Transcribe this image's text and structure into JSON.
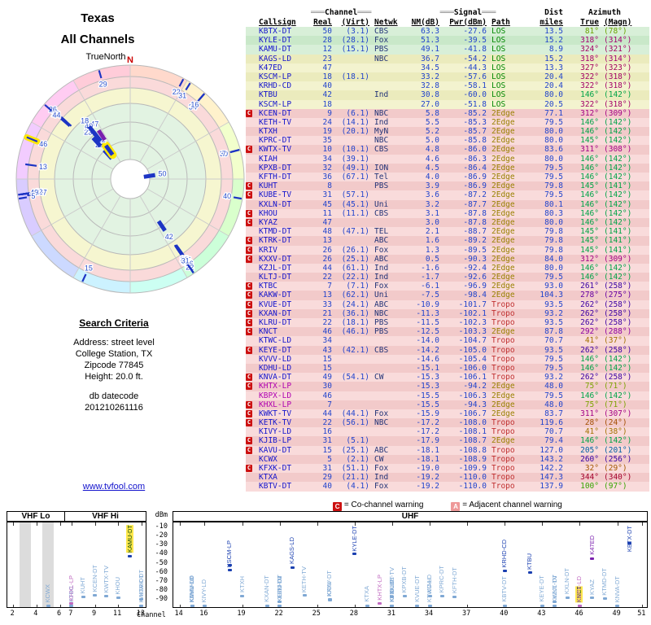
{
  "title": {
    "line1": "Texas",
    "line2": "All Channels"
  },
  "radar": {
    "compass": "N",
    "orientation": "TrueNorth"
  },
  "search": {
    "heading": "Search Criteria",
    "lines": [
      "Address: street level",
      "College Station, TX",
      "Zipcode 77845",
      "Height: 20.0 ft."
    ]
  },
  "datecode": {
    "label": "db datecode",
    "value": "201210261116"
  },
  "site_link": "www.tvfool.com",
  "header": {
    "deco": "═══",
    "channel": "Channel",
    "signal": "Signal",
    "callsign": "Callsign",
    "real": "Real",
    "virt": "(Virt)",
    "netwk": "Netwk",
    "nm": "NM(dB)",
    "pwr": "Pwr(dBm)",
    "path": "Path",
    "dist": "Dist",
    "miles": "miles",
    "azimuth": "Azimuth",
    "true": "True",
    "magn": "(Magn)"
  },
  "legend": {
    "c_symbol": "C",
    "c_text": "= Co-channel warning",
    "c_color": "#cc1111",
    "a_symbol": "A",
    "a_text": "= Adjacent channel warning",
    "a_color": "#ee9999"
  },
  "chart": {
    "dbm_label": "dBm",
    "channel_label": "Channel",
    "yticks": [
      "-10",
      "-20",
      "-30",
      "-40",
      "-50",
      "-60",
      "-70",
      "-80",
      "-90"
    ],
    "bands": [
      {
        "label": "VHF Lo"
      },
      {
        "label": "VHF Hi"
      },
      {
        "label": "UHF"
      }
    ],
    "vhf_ticks": [
      2,
      4,
      6,
      7,
      9,
      11,
      13
    ],
    "uhf_ticks": [
      14,
      16,
      19,
      22,
      25,
      28,
      31,
      34,
      37,
      40,
      43,
      46,
      49,
      51
    ],
    "gray_stripe_channels": [
      3,
      5
    ]
  },
  "stations": [
    {
      "cs": "KBTX-DT",
      "warn": "",
      "real": "50",
      "virt": "(3.1)",
      "net": "CBS",
      "nm": "63.3",
      "pwr": "-27.6",
      "path": "LOS",
      "dist": "13.5",
      "azt": "81°",
      "azm": "(78°)",
      "az": 81,
      "ch": 50,
      "nmv": 63.3,
      "pw": -27.6
    },
    {
      "cs": "KYLE-DT",
      "warn": "",
      "real": "28",
      "virt": "(28.1)",
      "net": "Fox",
      "nm": "51.3",
      "pwr": "-39.5",
      "path": "LOS",
      "dist": "15.2",
      "azt": "318°",
      "azm": "(314°)",
      "az": 318,
      "ch": 28,
      "nmv": 51.3,
      "pw": -39.5
    },
    {
      "cs": "KAMU-DT",
      "warn": "",
      "real": "12",
      "virt": "(15.1)",
      "net": "PBS",
      "nm": "49.1",
      "pwr": "-41.8",
      "path": "LOS",
      "dist": "8.9",
      "azt": "324°",
      "azm": "(321°)",
      "az": 324,
      "ch": 12,
      "nmv": 49.1,
      "pw": -41.8,
      "hl": true
    },
    {
      "cs": "KAGS-LD",
      "warn": "",
      "real": "23",
      "virt": "",
      "net": "NBC",
      "nm": "36.7",
      "pwr": "-54.2",
      "path": "LOS",
      "dist": "15.2",
      "azt": "318°",
      "azm": "(314°)",
      "az": 318,
      "ch": 23,
      "nmv": 36.7,
      "pw": -54.2
    },
    {
      "cs": "K47ED",
      "warn": "",
      "real": "47",
      "virt": "",
      "net": "",
      "nm": "34.5",
      "pwr": "-44.3",
      "path": "LOS",
      "dist": "13.3",
      "azt": "327°",
      "azm": "(323°)",
      "az": 327,
      "ch": 47,
      "nmv": 34.5,
      "pw": -44.3,
      "cc": "#7a1fae"
    },
    {
      "cs": "KSCM-LP",
      "warn": "",
      "real": "18",
      "virt": "(18.1)",
      "net": "",
      "nm": "33.2",
      "pwr": "-57.6",
      "path": "LOS",
      "dist": "20.4",
      "azt": "322°",
      "azm": "(318°)",
      "az": 322,
      "ch": 18,
      "nmv": 33.2,
      "pw": -57.6
    },
    {
      "cs": "KRHD-CD",
      "warn": "",
      "real": "40",
      "virt": "",
      "net": "",
      "nm": "32.8",
      "pwr": "-58.1",
      "path": "LOS",
      "dist": "20.4",
      "azt": "322°",
      "azm": "(318°)",
      "az": 322,
      "ch": 40,
      "nmv": 32.8,
      "pw": -58.1
    },
    {
      "cs": "KTBU",
      "warn": "",
      "real": "42",
      "virt": "",
      "net": "Ind",
      "nm": "30.8",
      "pwr": "-60.0",
      "path": "LOS",
      "dist": "80.0",
      "azt": "146°",
      "azm": "(142°)",
      "az": 146,
      "ch": 42,
      "nmv": 30.8,
      "pw": -60.0
    },
    {
      "cs": "KSCM-LP",
      "warn": "",
      "real": "18",
      "virt": "",
      "net": "",
      "nm": "27.0",
      "pwr": "-51.8",
      "path": "LOS",
      "dist": "20.5",
      "azt": "322°",
      "azm": "(318°)",
      "az": 322,
      "ch": 18,
      "nmv": 27.0,
      "pw": -51.8
    },
    {
      "cs": "KCEN-DT",
      "warn": "C",
      "real": "9",
      "virt": "(6.1)",
      "net": "NBC",
      "nm": "5.8",
      "pwr": "-85.2",
      "path": "2Edge",
      "dist": "77.1",
      "azt": "312°",
      "azm": "(309°)",
      "az": 312,
      "ch": 9,
      "nmv": 5.8,
      "pw": -85.2
    },
    {
      "cs": "KETH-TV",
      "warn": "",
      "real": "24",
      "virt": "(14.1)",
      "net": "Ind",
      "nm": "5.5",
      "pwr": "-85.3",
      "path": "2Edge",
      "dist": "79.5",
      "azt": "146°",
      "azm": "(142°)",
      "az": 146,
      "ch": 24,
      "nmv": 5.5,
      "pw": -85.3
    },
    {
      "cs": "KTXH",
      "warn": "",
      "real": "19",
      "virt": "(20.1)",
      "net": "MyN",
      "nm": "5.2",
      "pwr": "-85.7",
      "path": "2Edge",
      "dist": "80.0",
      "azt": "146°",
      "azm": "(142°)",
      "az": 146,
      "ch": 19,
      "nmv": 5.2,
      "pw": -85.7
    },
    {
      "cs": "KPRC-DT",
      "warn": "",
      "real": "35",
      "virt": "",
      "net": "NBC",
      "nm": "5.0",
      "pwr": "-85.8",
      "path": "2Edge",
      "dist": "80.0",
      "azt": "145°",
      "azm": "(142°)",
      "az": 145,
      "ch": 35,
      "nmv": 5.0,
      "pw": -85.8
    },
    {
      "cs": "KWTX-TV",
      "warn": "C",
      "real": "10",
      "virt": "(10.1)",
      "net": "CBS",
      "nm": "4.8",
      "pwr": "-86.0",
      "path": "2Edge",
      "dist": "83.6",
      "azt": "311°",
      "azm": "(308°)",
      "az": 311,
      "ch": 10,
      "nmv": 4.8,
      "pw": -86.0
    },
    {
      "cs": "KIAH",
      "warn": "",
      "real": "34",
      "virt": "(39.1)",
      "net": "",
      "nm": "4.6",
      "pwr": "-86.3",
      "path": "2Edge",
      "dist": "80.0",
      "azt": "146°",
      "azm": "(142°)",
      "az": 146,
      "ch": 34,
      "nmv": 4.6,
      "pw": -86.3
    },
    {
      "cs": "KPXB-DT",
      "warn": "",
      "real": "32",
      "virt": "(49.1)",
      "net": "ION",
      "nm": "4.5",
      "pwr": "-86.4",
      "path": "2Edge",
      "dist": "79.5",
      "azt": "146°",
      "azm": "(142°)",
      "az": 146,
      "ch": 32,
      "nmv": 4.5,
      "pw": -86.4
    },
    {
      "cs": "KFTH-DT",
      "warn": "",
      "real": "36",
      "virt": "(67.1)",
      "net": "Tel",
      "nm": "4.0",
      "pwr": "-86.9",
      "path": "2Edge",
      "dist": "79.5",
      "azt": "146°",
      "azm": "(142°)",
      "az": 146,
      "ch": 36,
      "nmv": 4.0,
      "pw": -86.9
    },
    {
      "cs": "KUHT",
      "warn": "C",
      "real": "8",
      "virt": "",
      "net": "PBS",
      "nm": "3.9",
      "pwr": "-86.9",
      "path": "2Edge",
      "dist": "79.8",
      "azt": "145°",
      "azm": "(141°)",
      "az": 145,
      "ch": 8,
      "nmv": 3.9,
      "pw": -86.9
    },
    {
      "cs": "KUBE-TV",
      "warn": "C",
      "real": "31",
      "virt": "(57.1)",
      "net": "",
      "nm": "3.6",
      "pwr": "-87.2",
      "path": "2Edge",
      "dist": "79.5",
      "azt": "146°",
      "azm": "(142°)",
      "az": 146,
      "ch": 31,
      "nmv": 3.6,
      "pw": -87.2
    },
    {
      "cs": "KXLN-DT",
      "warn": "",
      "real": "45",
      "virt": "(45.1)",
      "net": "Uni",
      "nm": "3.2",
      "pwr": "-87.7",
      "path": "2Edge",
      "dist": "80.1",
      "azt": "146°",
      "azm": "(142°)",
      "az": 146,
      "ch": 45,
      "nmv": 3.2,
      "pw": -87.7
    },
    {
      "cs": "KHOU",
      "warn": "C",
      "real": "11",
      "virt": "(11.1)",
      "net": "CBS",
      "nm": "3.1",
      "pwr": "-87.8",
      "path": "2Edge",
      "dist": "80.3",
      "azt": "146°",
      "azm": "(142°)",
      "az": 146,
      "ch": 11,
      "nmv": 3.1,
      "pw": -87.8
    },
    {
      "cs": "KYAZ",
      "warn": "C",
      "real": "47",
      "virt": "",
      "net": "",
      "nm": "3.0",
      "pwr": "-87.8",
      "path": "2Edge",
      "dist": "80.0",
      "azt": "146°",
      "azm": "(142°)",
      "az": 146,
      "ch": 47,
      "nmv": 3.0,
      "pw": -87.8
    },
    {
      "cs": "KTMD-DT",
      "warn": "",
      "real": "48",
      "virt": "(47.1)",
      "net": "TEL",
      "nm": "2.1",
      "pwr": "-88.7",
      "path": "2Edge",
      "dist": "79.8",
      "azt": "145°",
      "azm": "(141°)",
      "az": 145,
      "ch": 48,
      "nmv": 2.1,
      "pw": -88.7
    },
    {
      "cs": "KTRK-DT",
      "warn": "C",
      "real": "13",
      "virt": "",
      "net": "ABC",
      "nm": "1.6",
      "pwr": "-89.2",
      "path": "2Edge",
      "dist": "79.8",
      "azt": "145°",
      "azm": "(141°)",
      "az": 145,
      "ch": 13,
      "nmv": 1.6,
      "pw": -89.2
    },
    {
      "cs": "KRIV",
      "warn": "C",
      "real": "26",
      "virt": "(26.1)",
      "net": "Fox",
      "nm": "1.3",
      "pwr": "-89.5",
      "path": "2Edge",
      "dist": "79.8",
      "azt": "145°",
      "azm": "(141°)",
      "az": 145,
      "ch": 26,
      "nmv": 1.3,
      "pw": -89.5
    },
    {
      "cs": "KXXV-DT",
      "warn": "C",
      "real": "26",
      "virt": "(25.1)",
      "net": "ABC",
      "nm": "0.5",
      "pwr": "-90.3",
      "path": "2Edge",
      "dist": "84.0",
      "azt": "312°",
      "azm": "(309°)",
      "az": 312,
      "ch": 26,
      "nmv": 0.5,
      "pw": -90.3
    },
    {
      "cs": "KZJL-DT",
      "warn": "",
      "real": "44",
      "virt": "(61.1)",
      "net": "Ind",
      "nm": "-1.6",
      "pwr": "-92.4",
      "path": "2Edge",
      "dist": "80.0",
      "azt": "146°",
      "azm": "(142°)",
      "az": 146,
      "ch": 44,
      "nmv": -1.6,
      "pw": -92.4
    },
    {
      "cs": "KLTJ-DT",
      "warn": "",
      "real": "22",
      "virt": "(22.1)",
      "net": "Ind",
      "nm": "-1.7",
      "pwr": "-92.6",
      "path": "2Edge",
      "dist": "79.5",
      "azt": "146°",
      "azm": "(142°)",
      "az": 146,
      "ch": 22,
      "nmv": -1.7,
      "pw": -92.6
    },
    {
      "cs": "KTBC",
      "warn": "C",
      "real": "7",
      "virt": "(7.1)",
      "net": "Fox",
      "nm": "-6.1",
      "pwr": "-96.9",
      "path": "2Edge",
      "dist": "93.0",
      "azt": "261°",
      "azm": "(258°)",
      "az": 261,
      "ch": 7,
      "nmv": -6.1,
      "pw": -96.9
    },
    {
      "cs": "KAKW-DT",
      "warn": "C",
      "real": "13",
      "virt": "(62.1)",
      "net": "Uni",
      "nm": "-7.5",
      "pwr": "-98.4",
      "path": "2Edge",
      "dist": "104.3",
      "azt": "278°",
      "azm": "(275°)",
      "az": 278,
      "ch": 13,
      "nmv": -7.5,
      "pw": -98.4
    },
    {
      "cs": "KVUE-DT",
      "warn": "C",
      "real": "33",
      "virt": "(24.1)",
      "net": "ABC",
      "nm": "-10.9",
      "pwr": "-101.7",
      "path": "Tropo",
      "dist": "93.5",
      "azt": "262°",
      "azm": "(258°)",
      "az": 262,
      "ch": 33,
      "nmv": -10.9,
      "pw": -101.7
    },
    {
      "cs": "KXAN-DT",
      "warn": "C",
      "real": "21",
      "virt": "(36.1)",
      "net": "NBC",
      "nm": "-11.3",
      "pwr": "-102.1",
      "path": "Tropo",
      "dist": "93.2",
      "azt": "262°",
      "azm": "(258°)",
      "az": 262,
      "ch": 21,
      "nmv": -11.3,
      "pw": -102.1
    },
    {
      "cs": "KLRU-DT",
      "warn": "C",
      "real": "22",
      "virt": "(18.1)",
      "net": "PBS",
      "nm": "-11.5",
      "pwr": "-102.3",
      "path": "Tropo",
      "dist": "93.5",
      "azt": "262°",
      "azm": "(258°)",
      "az": 262,
      "ch": 22,
      "nmv": -11.5,
      "pw": -102.3
    },
    {
      "cs": "KNCT",
      "warn": "C",
      "real": "46",
      "virt": "(46.1)",
      "net": "PBS",
      "nm": "-12.5",
      "pwr": "-103.3",
      "path": "2Edge",
      "dist": "87.8",
      "azt": "292°",
      "azm": "(288°)",
      "az": 292,
      "ch": 46,
      "nmv": -12.5,
      "pw": -103.3,
      "hl": true
    },
    {
      "cs": "KTWC-LD",
      "warn": "",
      "real": "34",
      "virt": "",
      "net": "",
      "nm": "-14.0",
      "pwr": "-104.7",
      "path": "Tropo",
      "dist": "70.7",
      "azt": "41°",
      "azm": "(37°)",
      "az": 41,
      "ch": 34,
      "nmv": -14.0,
      "pw": -104.7
    },
    {
      "cs": "KEYE-DT",
      "warn": "C",
      "real": "43",
      "virt": "(42.1)",
      "net": "CBS",
      "nm": "-14.2",
      "pwr": "-105.0",
      "path": "Tropo",
      "dist": "93.5",
      "azt": "262°",
      "azm": "(258°)",
      "az": 262,
      "ch": 43,
      "nmv": -14.2,
      "pw": -105.0
    },
    {
      "cs": "KVVV-LD",
      "warn": "",
      "real": "15",
      "virt": "",
      "net": "",
      "nm": "-14.6",
      "pwr": "-105.4",
      "path": "Tropo",
      "dist": "79.5",
      "azt": "146°",
      "azm": "(142°)",
      "az": 146,
      "ch": 15,
      "nmv": -14.6,
      "pw": -105.4
    },
    {
      "cs": "KDHU-LD",
      "warn": "",
      "real": "15",
      "virt": "",
      "net": "",
      "nm": "-15.1",
      "pwr": "-106.0",
      "path": "Tropo",
      "dist": "79.5",
      "azt": "146°",
      "azm": "(142°)",
      "az": 146,
      "ch": 15,
      "nmv": -15.1,
      "pw": -106.0
    },
    {
      "cs": "KNVA-DT",
      "warn": "C",
      "real": "49",
      "virt": "(54.1)",
      "net": "CW",
      "nm": "-15.3",
      "pwr": "-106.1",
      "path": "Tropo",
      "dist": "93.2",
      "azt": "262°",
      "azm": "(258°)",
      "az": 262,
      "ch": 49,
      "nmv": -15.3,
      "pw": -106.1
    },
    {
      "cs": "KHTX-LP",
      "warn": "C",
      "real": "30",
      "virt": "",
      "net": "",
      "nm": "-15.3",
      "pwr": "-94.2",
      "path": "2Edge",
      "dist": "48.0",
      "azt": "75°",
      "azm": "(71°)",
      "az": 75,
      "ch": 30,
      "nmv": -15.3,
      "pw": -94.2,
      "mag": true
    },
    {
      "cs": "KBPX-LD",
      "warn": "",
      "real": "46",
      "virt": "",
      "net": "",
      "nm": "-15.5",
      "pwr": "-106.3",
      "path": "2Edge",
      "dist": "79.5",
      "azt": "146°",
      "azm": "(142°)",
      "az": 146,
      "ch": 46,
      "nmv": -15.5,
      "pw": -106.3,
      "mag": true
    },
    {
      "cs": "KHXL-LP",
      "warn": "C",
      "real": "7",
      "virt": "",
      "net": "",
      "nm": "-15.5",
      "pwr": "-94.3",
      "path": "2Edge",
      "dist": "48.0",
      "azt": "75°",
      "azm": "(71°)",
      "az": 75,
      "ch": 7,
      "nmv": -15.5,
      "pw": -94.3,
      "mag": true
    },
    {
      "cs": "KWKT-TV",
      "warn": "C",
      "real": "44",
      "virt": "(44.1)",
      "net": "Fox",
      "nm": "-15.9",
      "pwr": "-106.7",
      "path": "2Edge",
      "dist": "83.7",
      "azt": "311°",
      "azm": "(307°)",
      "az": 311,
      "ch": 44,
      "nmv": -15.9,
      "pw": -106.7
    },
    {
      "cs": "KETK-TV",
      "warn": "C",
      "real": "22",
      "virt": "(56.1)",
      "net": "NBC",
      "nm": "-17.2",
      "pwr": "-108.0",
      "path": "Tropo",
      "dist": "119.6",
      "azt": "28°",
      "azm": "(24°)",
      "az": 28,
      "ch": 22,
      "nmv": -17.2,
      "pw": -108.0
    },
    {
      "cs": "KIVY-LD",
      "warn": "",
      "real": "16",
      "virt": "",
      "net": "",
      "nm": "-17.2",
      "pwr": "-108.1",
      "path": "Tropo",
      "dist": "70.7",
      "azt": "41°",
      "azm": "(38°)",
      "az": 41,
      "ch": 16,
      "nmv": -17.2,
      "pw": -108.1
    },
    {
      "cs": "KJIB-LP",
      "warn": "C",
      "real": "31",
      "virt": "(5.1)",
      "net": "",
      "nm": "-17.9",
      "pwr": "-108.7",
      "path": "2Edge",
      "dist": "79.4",
      "azt": "146°",
      "azm": "(142°)",
      "az": 146,
      "ch": 31,
      "nmv": -17.9,
      "pw": -108.7
    },
    {
      "cs": "KAVU-DT",
      "warn": "C",
      "real": "15",
      "virt": "(25.1)",
      "net": "ABC",
      "nm": "-18.1",
      "pwr": "-108.8",
      "path": "Tropo",
      "dist": "127.0",
      "azt": "205°",
      "azm": "(201°)",
      "az": 205,
      "ch": 15,
      "nmv": -18.1,
      "pw": -108.8
    },
    {
      "cs": "KCWX",
      "warn": "",
      "real": "5",
      "virt": "(2.1)",
      "net": "CW",
      "nm": "-18.1",
      "pwr": "-108.9",
      "path": "Tropo",
      "dist": "143.2",
      "azt": "260°",
      "azm": "(256°)",
      "az": 260,
      "ch": 5,
      "nmv": -18.1,
      "pw": -108.9
    },
    {
      "cs": "KFXK-DT",
      "warn": "C",
      "real": "31",
      "virt": "(51.1)",
      "net": "Fox",
      "nm": "-19.0",
      "pwr": "-109.9",
      "path": "Tropo",
      "dist": "142.2",
      "azt": "32°",
      "azm": "(29°)",
      "az": 32,
      "ch": 31,
      "nmv": -19.0,
      "pw": -109.9
    },
    {
      "cs": "KTXA",
      "warn": "",
      "real": "29",
      "virt": "(21.1)",
      "net": "Ind",
      "nm": "-19.2",
      "pwr": "-110.0",
      "path": "Tropo",
      "dist": "147.3",
      "azt": "344°",
      "azm": "(340°)",
      "az": 344,
      "ch": 29,
      "nmv": -19.2,
      "pw": -110.0
    },
    {
      "cs": "KBTV-DT",
      "warn": "",
      "real": "40",
      "virt": "(4.1)",
      "net": "Fox",
      "nm": "-19.2",
      "pwr": "-110.0",
      "path": "Tropo",
      "dist": "137.9",
      "azt": "100°",
      "azm": "(97°)",
      "az": 100,
      "ch": 40,
      "nmv": -19.2,
      "pw": -110.0
    }
  ]
}
